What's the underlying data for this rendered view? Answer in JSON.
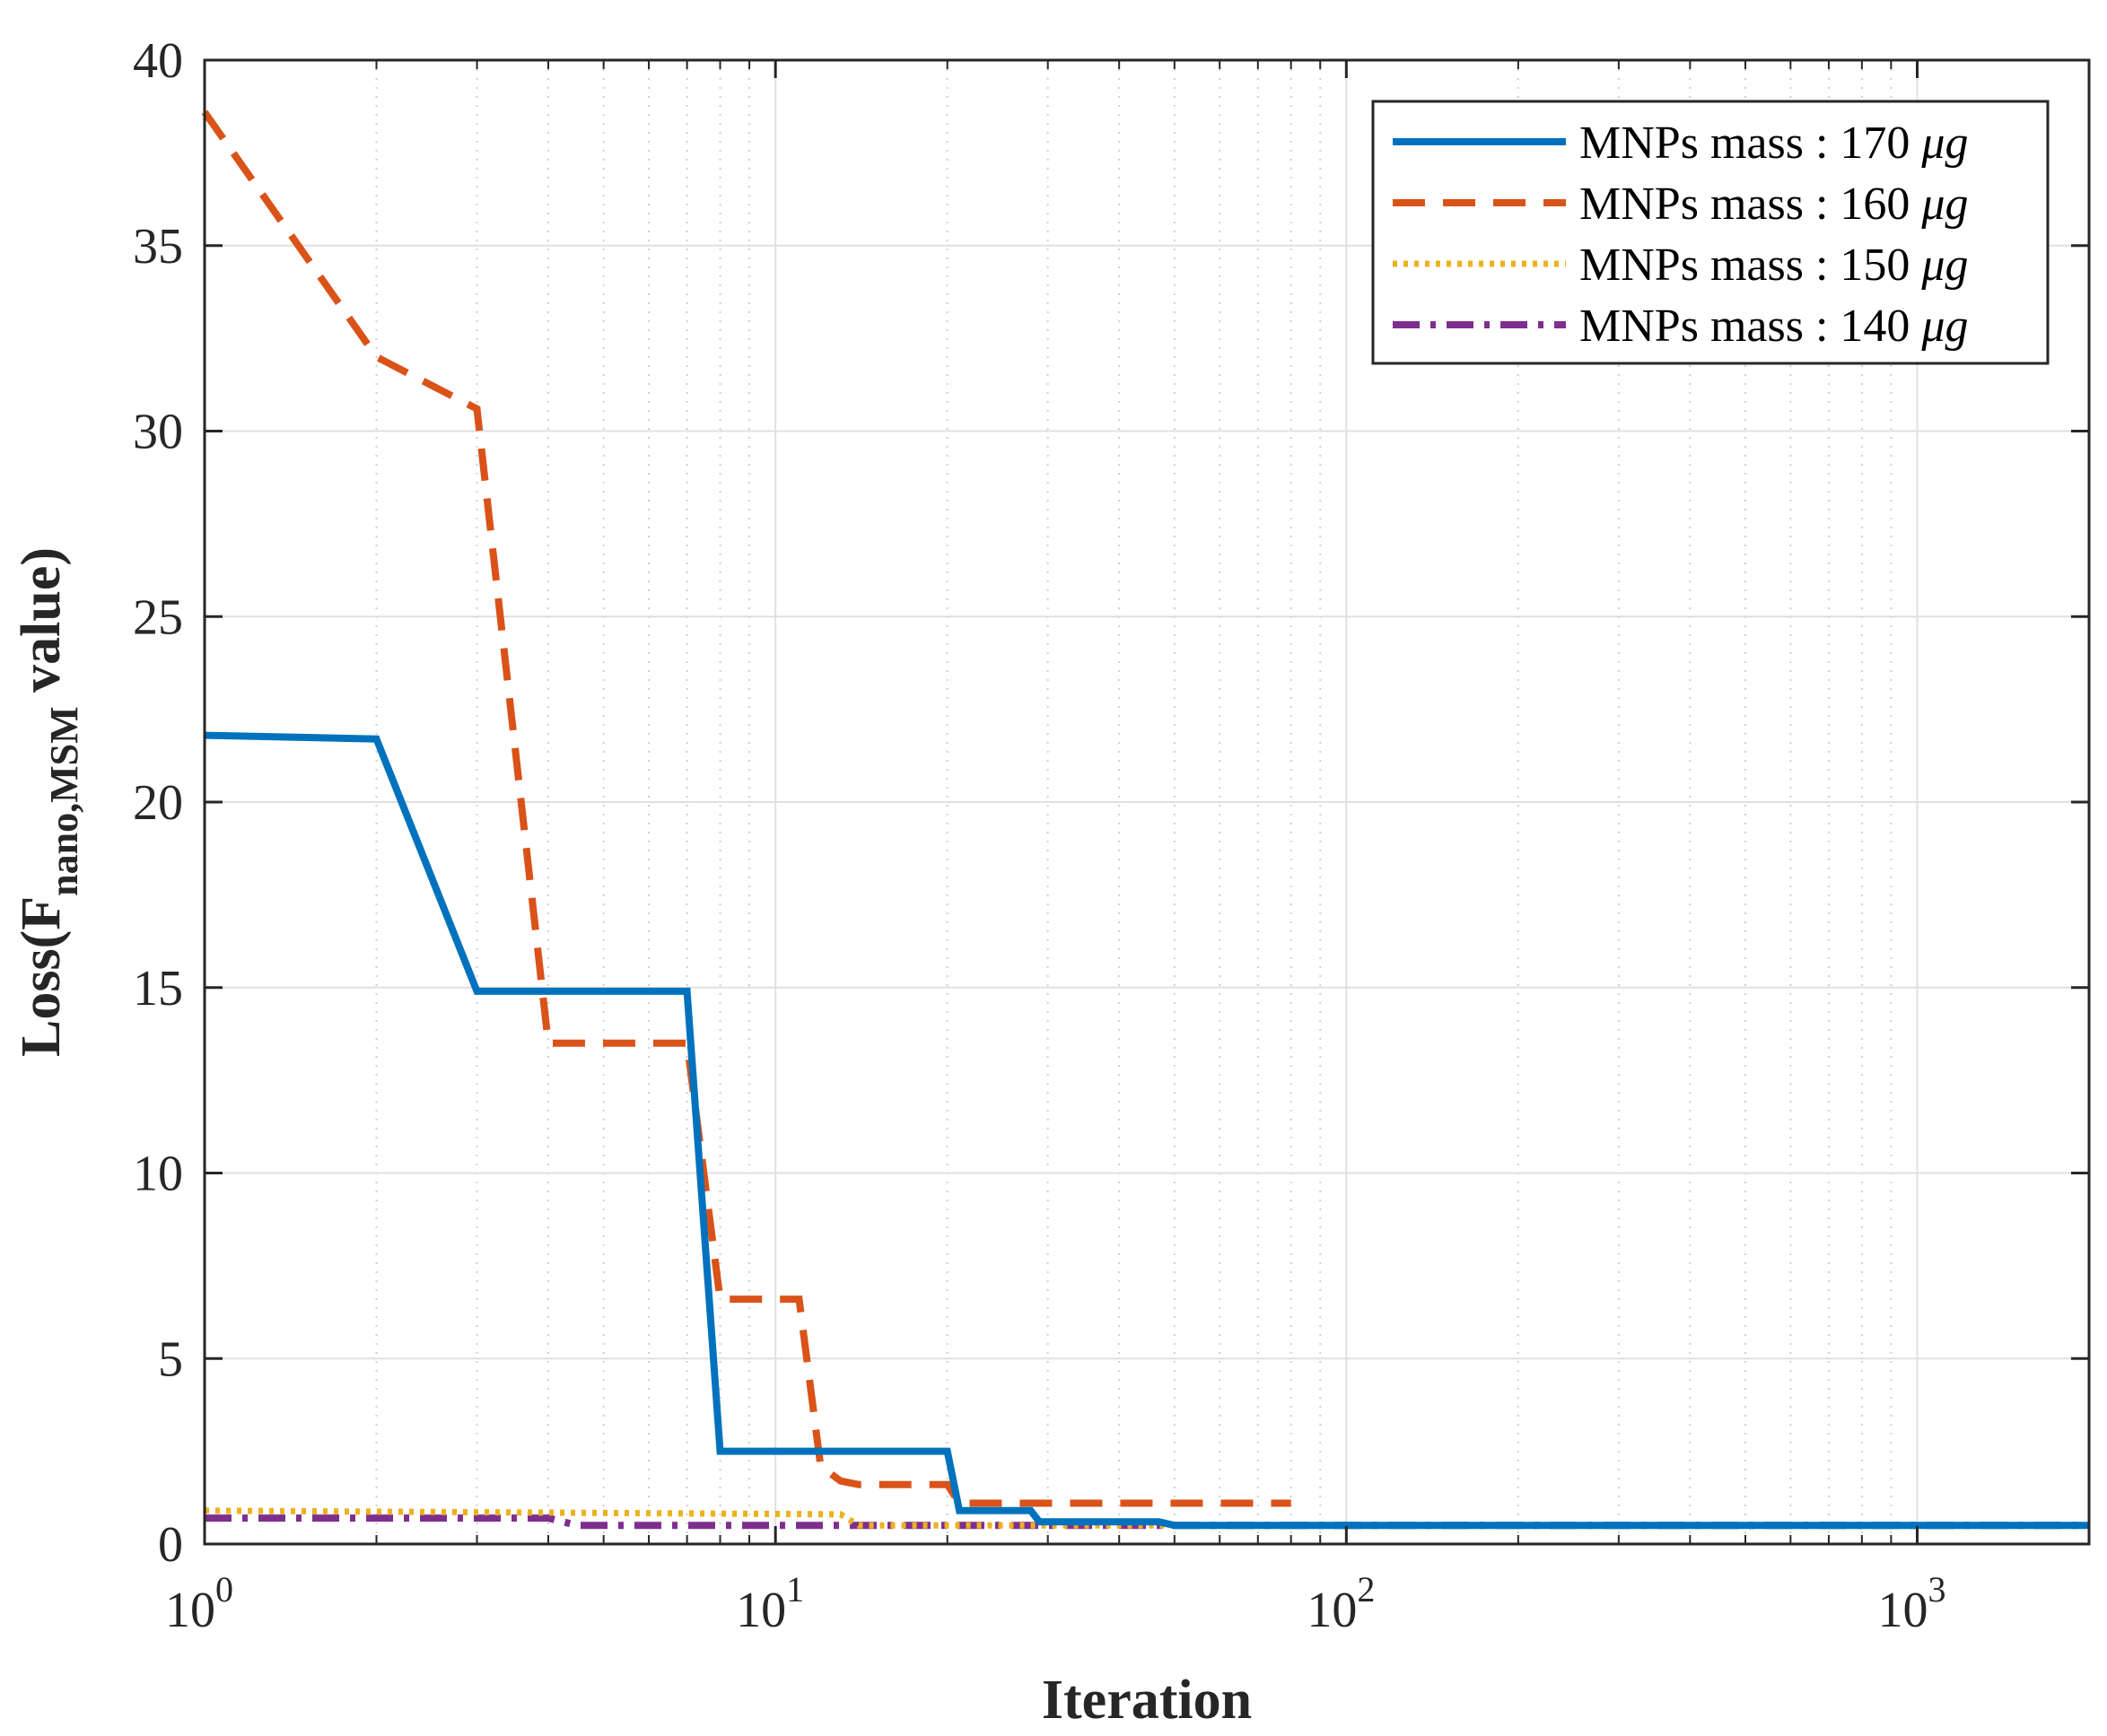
{
  "chart_data": {
    "type": "line",
    "title": "",
    "xlabel": "Iteration",
    "ylabel": {
      "main": "Loss(F",
      "subscript": "nano,MSM",
      "suffix": " value)"
    },
    "xscale": "log",
    "xlim": [
      1,
      2000
    ],
    "ylim": [
      0,
      40
    ],
    "x_tick_base": "10",
    "x_ticks": [
      {
        "value": 1,
        "exponent": "0"
      },
      {
        "value": 10,
        "exponent": "1"
      },
      {
        "value": 100,
        "exponent": "2"
      },
      {
        "value": 1000,
        "exponent": "3"
      }
    ],
    "y_ticks": [
      0,
      5,
      10,
      15,
      20,
      25,
      30,
      35,
      40
    ],
    "grid": true,
    "legend_position": "top-right",
    "series": [
      {
        "name": "MNPs mass : 170 μg",
        "legend_prefix": "MNPs mass : 170 ",
        "legend_unit": "μg",
        "color": "#0072BD",
        "style": "solid",
        "x": [
          1,
          2,
          3,
          7,
          8,
          20,
          21,
          28,
          29,
          47,
          50,
          2000
        ],
        "y": [
          21.8,
          21.7,
          14.9,
          14.9,
          2.5,
          2.5,
          0.9,
          0.9,
          0.6,
          0.6,
          0.5,
          0.5
        ]
      },
      {
        "name": "MNPs mass : 160 μg",
        "legend_prefix": "MNPs mass : 160 ",
        "legend_unit": "μg",
        "color": "#D95319",
        "style": "dashed",
        "x": [
          1,
          2,
          3,
          4,
          7,
          8,
          11,
          12,
          13,
          14,
          20,
          21,
          80
        ],
        "y": [
          38.6,
          32.0,
          30.6,
          13.5,
          13.5,
          6.6,
          6.6,
          2.1,
          1.7,
          1.6,
          1.6,
          1.1,
          1.1
        ]
      },
      {
        "name": "MNPs mass : 150 μg",
        "legend_prefix": "MNPs mass : 150 ",
        "legend_unit": "μg",
        "color": "#EDB120",
        "style": "dotted",
        "x": [
          1,
          13,
          14,
          2000
        ],
        "y": [
          0.9,
          0.8,
          0.5,
          0.5
        ]
      },
      {
        "name": "MNPs mass : 140 μg",
        "legend_prefix": "MNPs mass : 140 ",
        "legend_unit": "μg",
        "color": "#7E2F8E",
        "style": "dashdot",
        "x": [
          1,
          4,
          4.5,
          2000
        ],
        "y": [
          0.7,
          0.7,
          0.5,
          0.5
        ]
      }
    ]
  }
}
